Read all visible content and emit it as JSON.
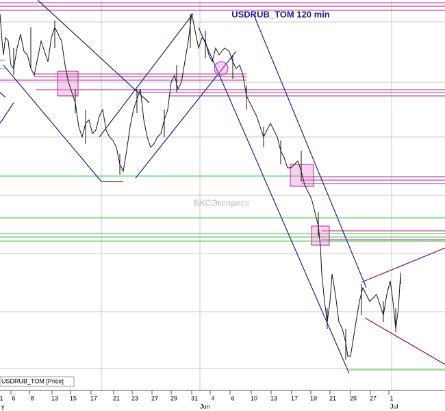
{
  "title": "USDRUB_TOM 120 min",
  "watermark": "БКСЭкспресс",
  "legend": "USDRUB_TOM [Price]",
  "x_axis": {
    "day_labels": [
      "1",
      "6",
      "8",
      "13",
      "15",
      "17",
      "21",
      "23",
      "27",
      "29",
      "31",
      "4",
      "6",
      "10",
      "13",
      "17",
      "19",
      "21",
      "25",
      "27",
      "1"
    ],
    "month_labels": [
      "y",
      "Jun",
      "Jul"
    ]
  }
}
